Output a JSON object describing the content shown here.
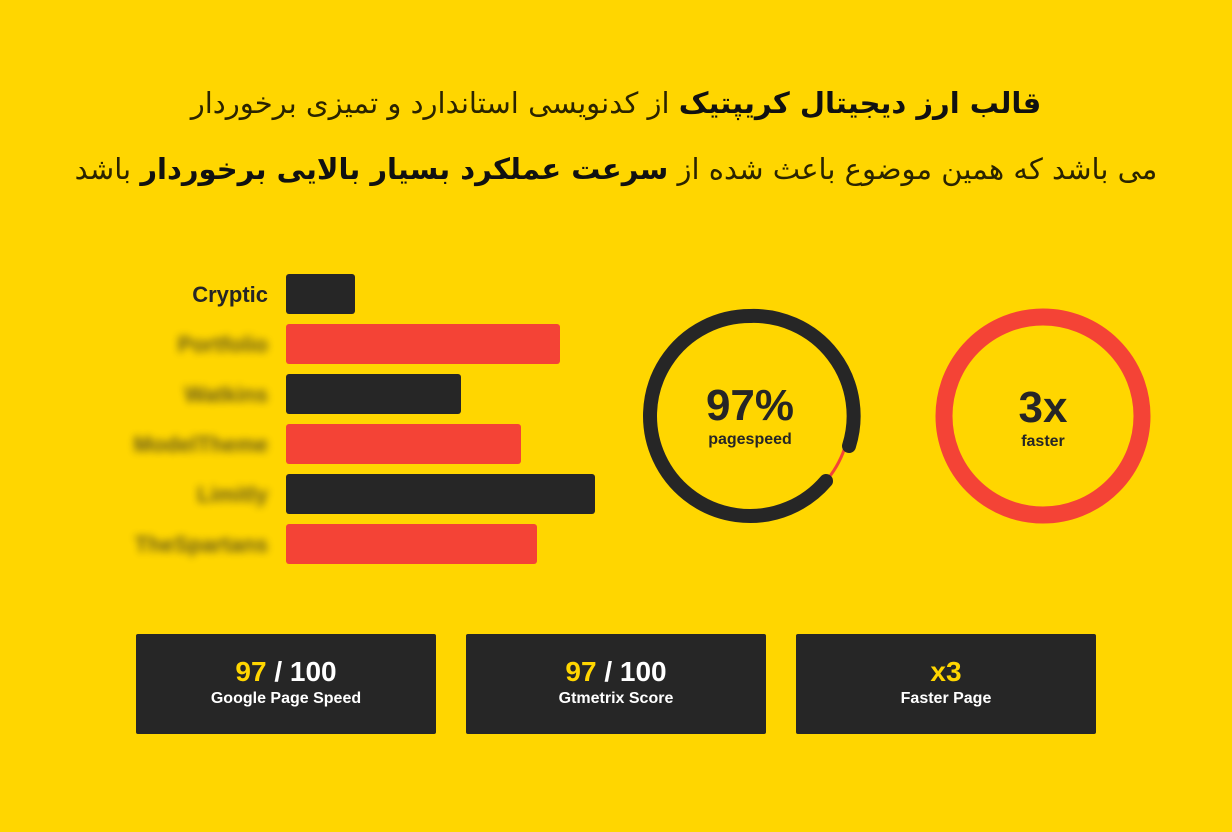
{
  "header": {
    "line1": {
      "bold": "قالب ارز دیجیتال کریپتیک",
      "rest": "از کدنویسی استاندارد و تمیزی برخوردار"
    },
    "line2": {
      "start": "می باشد که همین موضوع باعث شده از",
      "bold": "سرعت عملکرد بسیار بالایی برخوردار",
      "end": "باشد"
    }
  },
  "bars": {
    "categories": [
      "Cryptic",
      "Portfolio",
      "Watkins",
      "ModelTheme",
      "Limitly",
      "TheSpartans"
    ],
    "values": [
      69,
      274,
      175,
      235,
      309,
      251
    ],
    "colors": [
      "#262626",
      "#f44336",
      "#262626",
      "#f44336",
      "#262626",
      "#f44336"
    ]
  },
  "gauges": [
    {
      "text": "97%",
      "label": "pagespeed"
    },
    {
      "text": "3x",
      "label": "faster"
    }
  ],
  "cards": [
    {
      "score": "97",
      "total": "/ 100",
      "label": "Google Page Speed"
    },
    {
      "score": "97",
      "total": "/ 100",
      "label": "Gtmetrix Score"
    },
    {
      "score": "x3",
      "label": "Faster Page"
    }
  ]
}
